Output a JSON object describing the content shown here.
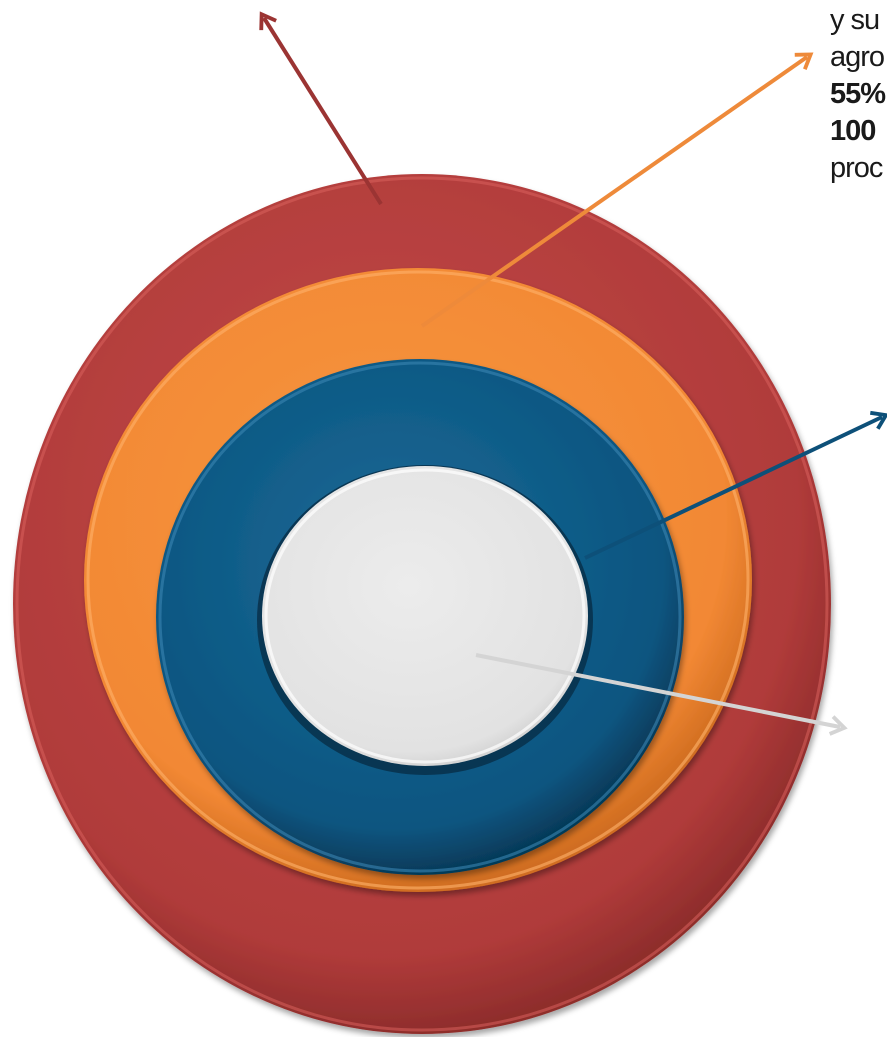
{
  "diagram": {
    "rings": [
      {
        "name": "outer-ring",
        "color": "#b13c3b"
      },
      {
        "name": "orange-ring",
        "color": "#f28a35"
      },
      {
        "name": "blue-ring",
        "color": "#0b5580"
      },
      {
        "name": "center-disc",
        "color": "#e4e4e4"
      }
    ],
    "arrows": [
      {
        "name": "outer-arrow",
        "color": "#9b3433"
      },
      {
        "name": "orange-arrow",
        "color": "#ee8a3a"
      },
      {
        "name": "blue-arrow",
        "color": "#0d5079"
      },
      {
        "name": "center-arrow",
        "color": "#d4d4d4"
      }
    ]
  },
  "annotation": {
    "line1": "y su",
    "line2": "agro",
    "line3": "55%",
    "line4": "100",
    "line5": "proc"
  }
}
